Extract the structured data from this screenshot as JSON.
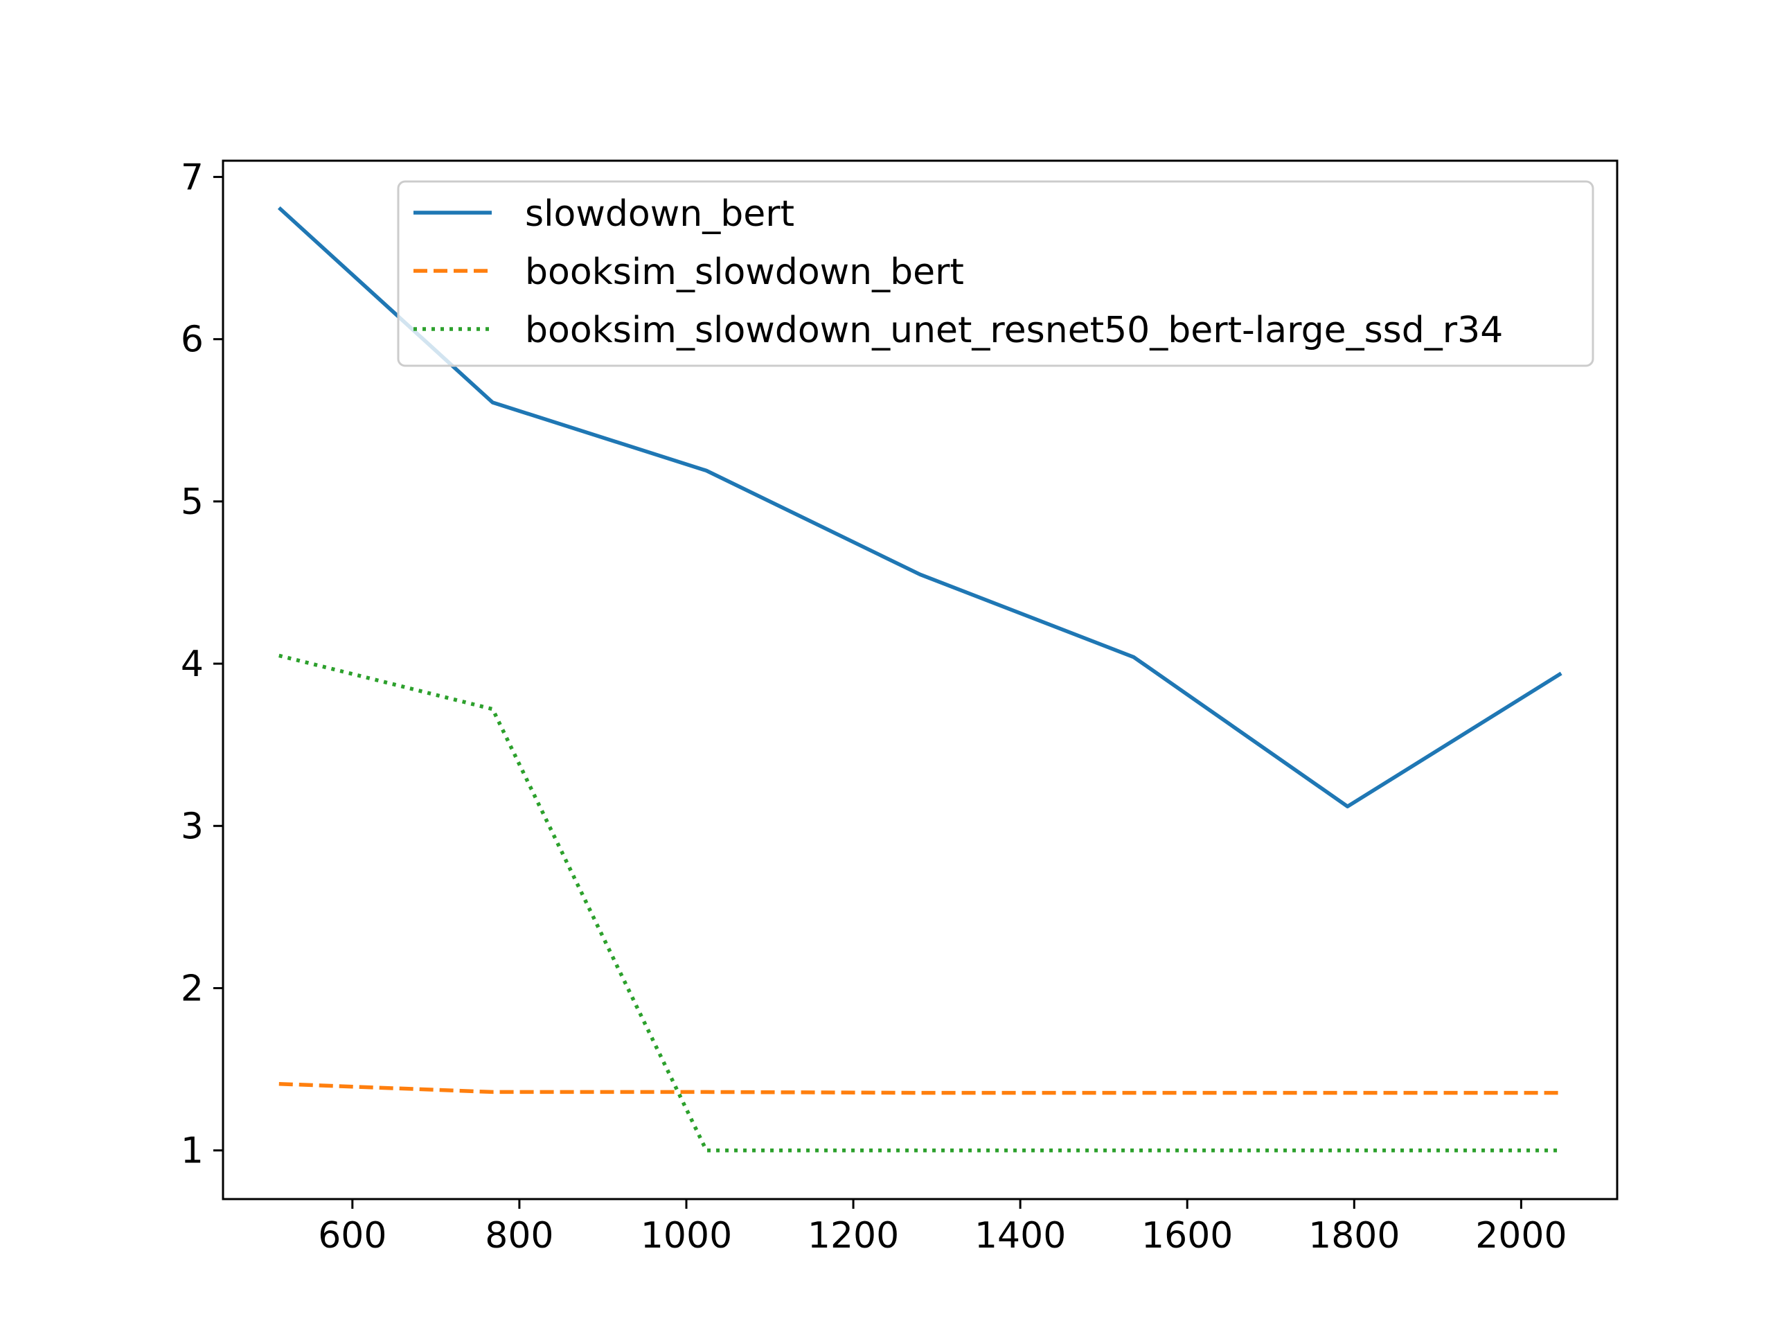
{
  "chart_data": {
    "type": "line",
    "title": "",
    "xlabel": "",
    "ylabel": "",
    "xlim": [
      445,
      2115
    ],
    "ylim": [
      0.7,
      7.1
    ],
    "xticks": [
      600,
      800,
      1000,
      1200,
      1400,
      1600,
      1800,
      2000
    ],
    "yticks": [
      1,
      2,
      3,
      4,
      5,
      6,
      7
    ],
    "grid": false,
    "legend_position": "top-right",
    "series": [
      {
        "name": "slowdown_bert",
        "color": "#1f77b4",
        "style": "solid",
        "x": [
          512,
          768,
          1024,
          1280,
          1536,
          1792,
          2048
        ],
        "y": [
          6.81,
          5.61,
          5.19,
          4.55,
          4.04,
          3.12,
          3.94
        ]
      },
      {
        "name": "booksim_slowdown_bert",
        "color": "#ff7f0e",
        "style": "dashed",
        "x": [
          512,
          768,
          1024,
          1280,
          1536,
          1792,
          2048
        ],
        "y": [
          1.41,
          1.36,
          1.36,
          1.355,
          1.355,
          1.355,
          1.355
        ]
      },
      {
        "name": "booksim_slowdown_unet_resnet50_bert-large_ssd_r34",
        "color": "#2ca02c",
        "style": "dotted",
        "x": [
          512,
          768,
          1024,
          1280,
          1536,
          1792,
          2048
        ],
        "y": [
          4.05,
          3.72,
          1.0,
          1.0,
          1.0,
          1.0,
          1.0
        ]
      }
    ]
  }
}
